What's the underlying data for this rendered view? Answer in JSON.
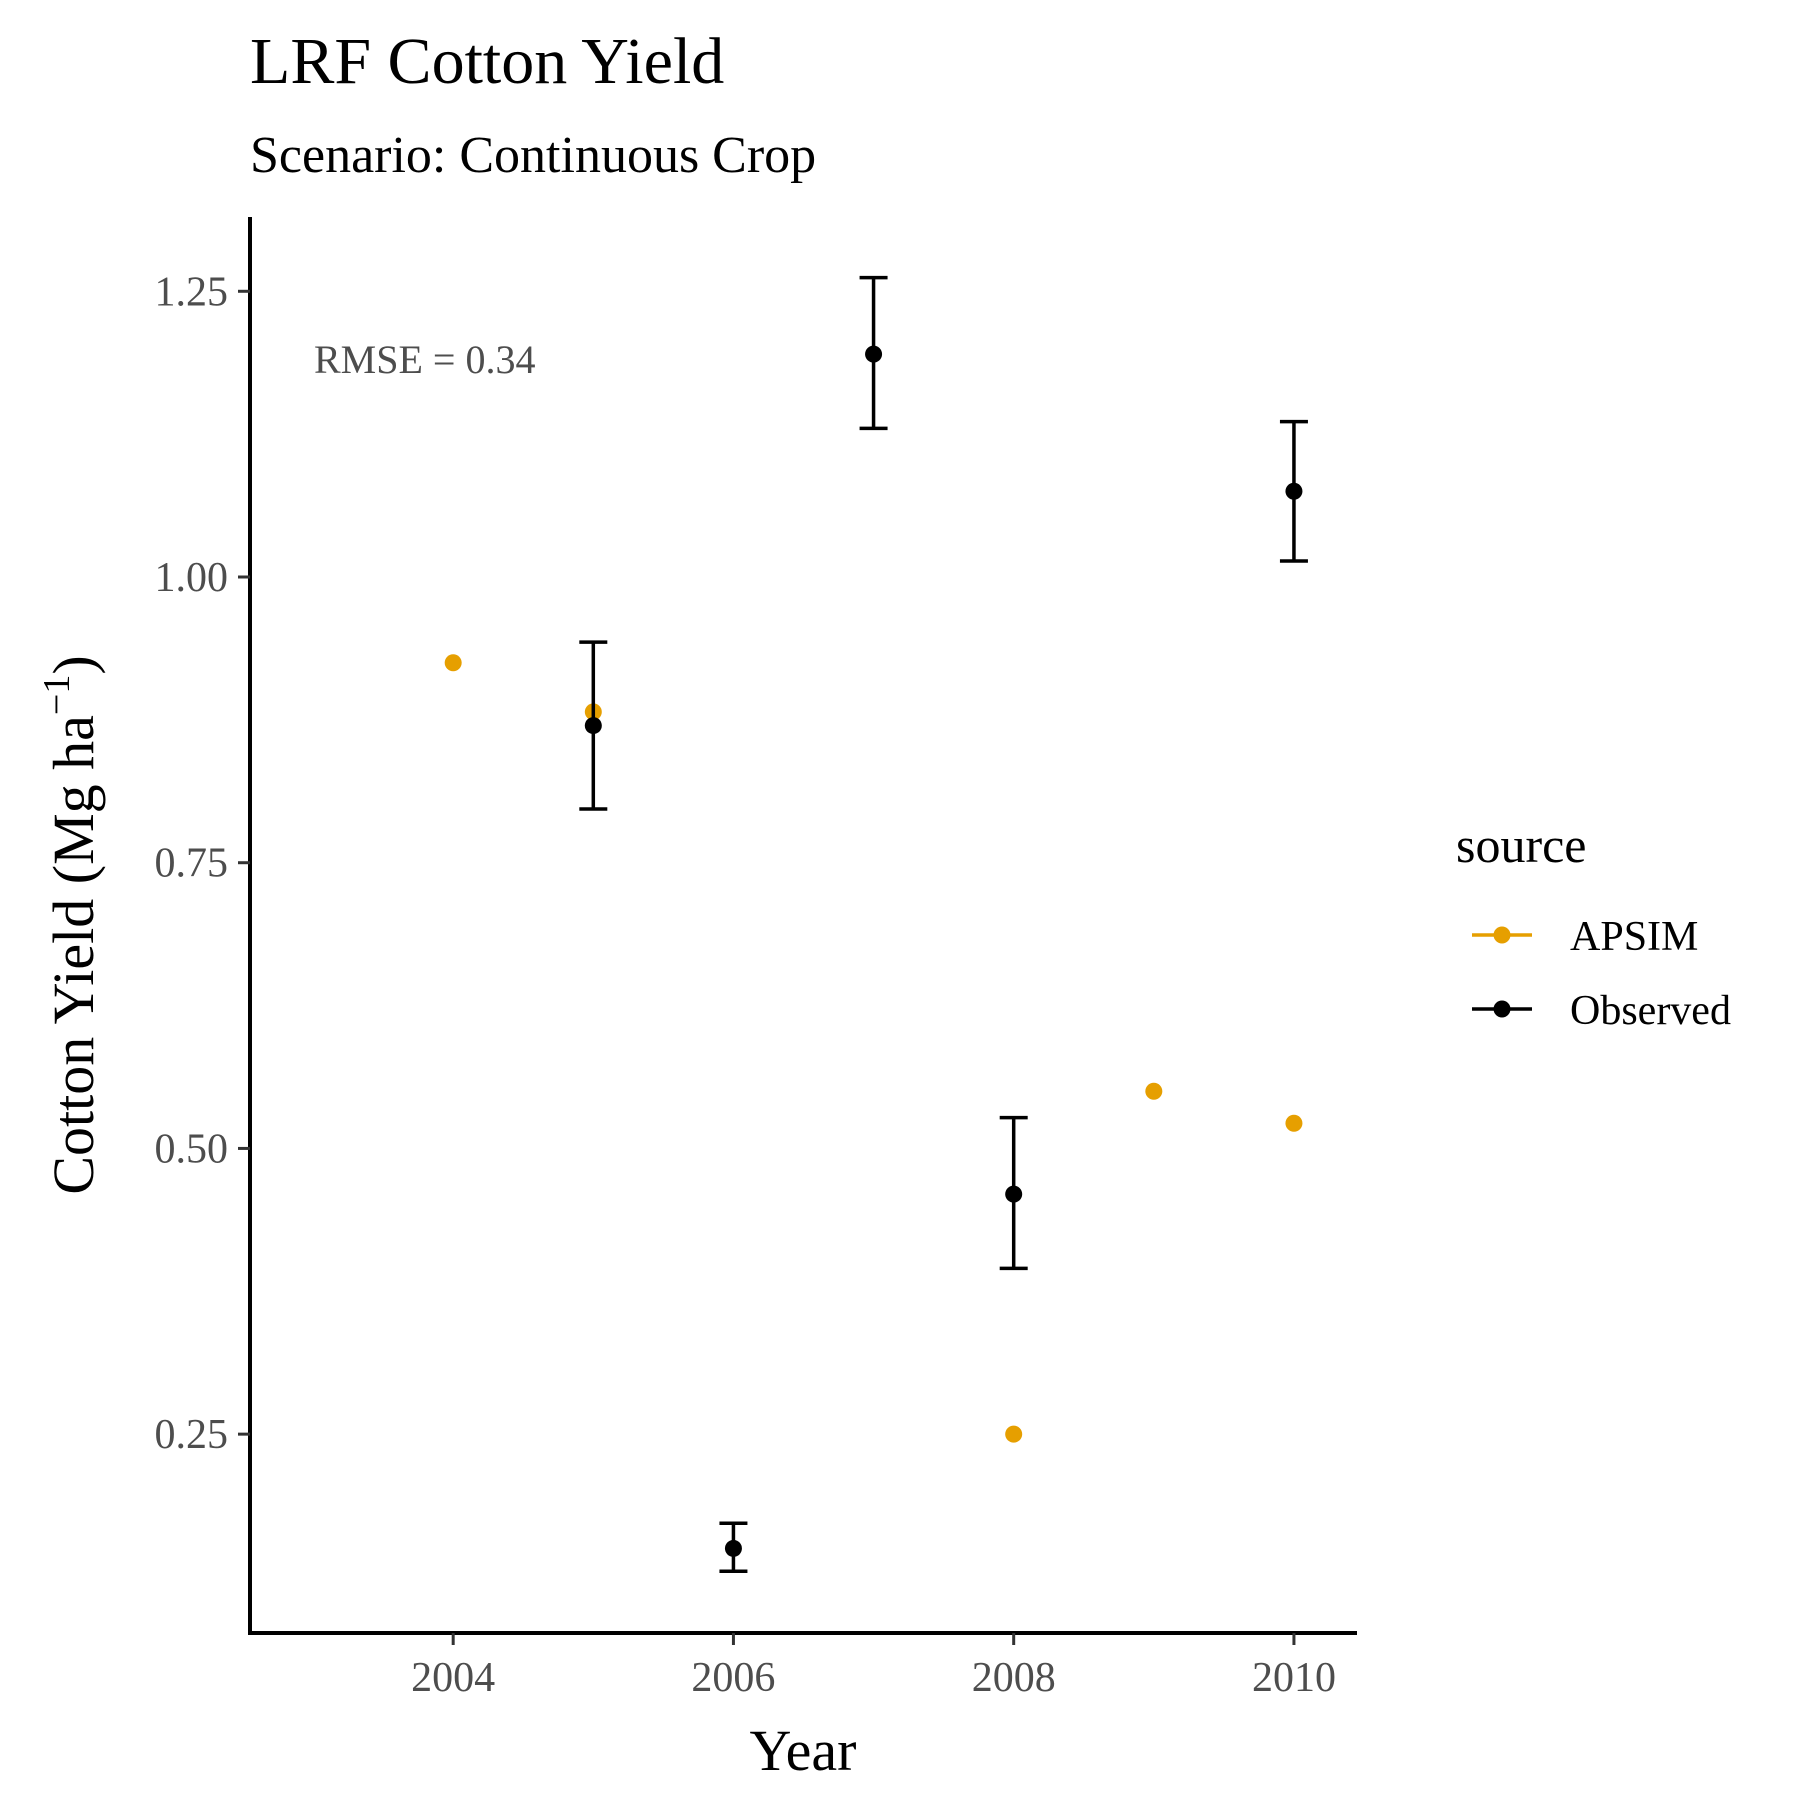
{
  "chart_data": {
    "type": "scatter",
    "title": "LRF Cotton Yield",
    "subtitle": "Scenario: Continuous Crop",
    "xlabel": "Year",
    "ylabel": "Cotton Yield (Mg ha",
    "ylabel_sup": "−1",
    "ylabel_close": ")",
    "xlim": [
      2002.55,
      2010.45
    ],
    "ylim": [
      0.076,
      1.315
    ],
    "x_ticks": [
      2004,
      2006,
      2008,
      2010
    ],
    "x_tick_labels": [
      "2004",
      "2006",
      "2008",
      "2010"
    ],
    "y_ticks": [
      0.25,
      0.5,
      0.75,
      1.0,
      1.25
    ],
    "y_tick_labels": [
      "0.25",
      "0.50",
      "0.75",
      "1.00",
      "1.25"
    ],
    "grid": false,
    "annotation": "RMSE = 0.34",
    "legend": {
      "title": "source",
      "position": "right"
    },
    "series": [
      {
        "name": "APSIM",
        "color": "#E69F00",
        "x": [
          2004,
          2005,
          2008,
          2009,
          2010
        ],
        "y": [
          0.925,
          0.882,
          0.25,
          0.55,
          0.522
        ]
      },
      {
        "name": "Observed",
        "color": "#000000",
        "x": [
          2005,
          2006,
          2007,
          2008,
          2010
        ],
        "y": [
          0.87,
          0.15,
          1.195,
          0.46,
          1.075
        ],
        "ymin": [
          0.797,
          0.13,
          1.13,
          0.395,
          1.014
        ],
        "ymax": [
          0.943,
          0.172,
          1.262,
          0.527,
          1.136
        ]
      }
    ]
  }
}
